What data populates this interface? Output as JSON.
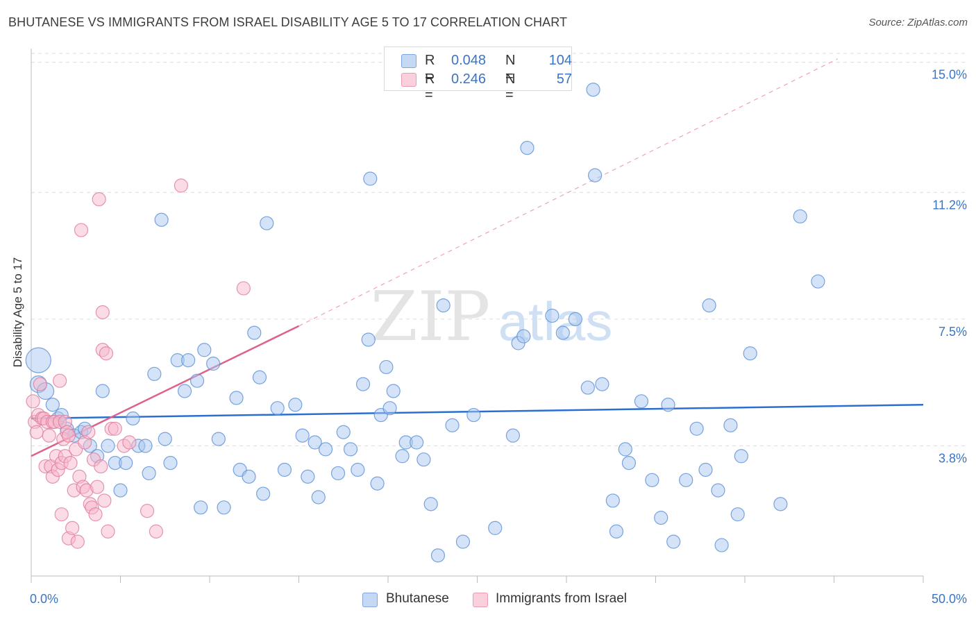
{
  "title": "BHUTANESE VS IMMIGRANTS FROM ISRAEL DISABILITY AGE 5 TO 17 CORRELATION CHART",
  "source": "Source: ZipAtlas.com",
  "watermark": {
    "zip": "ZIP",
    "atlas": "atlas"
  },
  "legend": {
    "rows": [
      {
        "r_label": "R =",
        "r_value": "0.048",
        "n_label": "N =",
        "n_value": "104",
        "color": "#a9c8f0"
      },
      {
        "r_label": "R =",
        "r_value": "0.246",
        "n_label": "N =",
        "n_value": "57",
        "color": "#f7b8cc"
      }
    ]
  },
  "bottom_legend": {
    "items": [
      {
        "label": "Bhutanese",
        "color": "#a9c8f0"
      },
      {
        "label": "Immigrants from Israel",
        "color": "#f7b8cc"
      }
    ]
  },
  "chart_data": {
    "type": "scatter",
    "title": "BHUTANESE VS IMMIGRANTS FROM ISRAEL DISABILITY AGE 5 TO 17 CORRELATION CHART",
    "xlabel": "",
    "ylabel": "Disability Age 5 to 17",
    "xlim": [
      0,
      50
    ],
    "ylim": [
      0,
      15.4
    ],
    "x_tick_labels": [
      {
        "value": 0,
        "label": "0.0%"
      },
      {
        "value": 50,
        "label": "50.0%"
      }
    ],
    "y_tick_labels": [
      {
        "value": 3.8,
        "label": "3.8%"
      },
      {
        "value": 7.5,
        "label": "7.5%"
      },
      {
        "value": 11.2,
        "label": "11.2%"
      },
      {
        "value": 15.0,
        "label": "15.0%"
      }
    ],
    "grid": true,
    "legend_position": "top-center",
    "colors": {
      "bhutanese_fill": "#a9c8f0",
      "bhutanese_stroke": "#5a8fd6",
      "bhutanese_line": "#2a6fcf",
      "israel_fill": "#f7b8cc",
      "israel_stroke": "#e07b9c",
      "israel_line": "#e0608c"
    },
    "series": [
      {
        "name": "Bhutanese",
        "points": [
          [
            0.4,
            6.3,
            3
          ],
          [
            0.4,
            5.6,
            2
          ],
          [
            0.8,
            5.4,
            2
          ],
          [
            1.2,
            5.0,
            1
          ],
          [
            1.5,
            4.6,
            1
          ],
          [
            1.7,
            4.7,
            1
          ],
          [
            2.0,
            4.3,
            1
          ],
          [
            2.4,
            4.1,
            1
          ],
          [
            2.8,
            4.2,
            1
          ],
          [
            3.0,
            4.3,
            1
          ],
          [
            3.3,
            3.8,
            1
          ],
          [
            3.7,
            3.5,
            1
          ],
          [
            4.0,
            5.4,
            1
          ],
          [
            4.3,
            3.8,
            1
          ],
          [
            4.7,
            3.3,
            1
          ],
          [
            5.0,
            2.5,
            1
          ],
          [
            5.3,
            3.3,
            1
          ],
          [
            5.7,
            4.6,
            1
          ],
          [
            6.0,
            3.8,
            1
          ],
          [
            6.4,
            3.8,
            1
          ],
          [
            6.6,
            3.0,
            1
          ],
          [
            6.9,
            5.9,
            1
          ],
          [
            7.5,
            4.0,
            1
          ],
          [
            7.3,
            10.4,
            1
          ],
          [
            7.8,
            3.3,
            1
          ],
          [
            8.2,
            6.3,
            1
          ],
          [
            8.6,
            5.4,
            1
          ],
          [
            8.8,
            6.3,
            1
          ],
          [
            9.3,
            5.7,
            1
          ],
          [
            9.5,
            2.0,
            1
          ],
          [
            9.7,
            6.6,
            1
          ],
          [
            10.2,
            6.2,
            1
          ],
          [
            10.5,
            4.0,
            1
          ],
          [
            10.8,
            2.0,
            1
          ],
          [
            11.5,
            5.2,
            1
          ],
          [
            11.7,
            3.1,
            1
          ],
          [
            12.2,
            2.9,
            1
          ],
          [
            12.5,
            7.1,
            1
          ],
          [
            12.8,
            5.8,
            1
          ],
          [
            13.0,
            2.4,
            1
          ],
          [
            13.2,
            10.3,
            1
          ],
          [
            13.8,
            4.9,
            1
          ],
          [
            14.2,
            3.1,
            1
          ],
          [
            14.8,
            5.0,
            1
          ],
          [
            15.2,
            4.1,
            1
          ],
          [
            15.5,
            2.9,
            1
          ],
          [
            15.9,
            3.9,
            1
          ],
          [
            16.1,
            2.3,
            1
          ],
          [
            16.5,
            3.7,
            1
          ],
          [
            17.2,
            3.0,
            1
          ],
          [
            17.5,
            4.2,
            1
          ],
          [
            17.9,
            3.7,
            1
          ],
          [
            18.3,
            3.1,
            1
          ],
          [
            18.6,
            5.6,
            1
          ],
          [
            18.9,
            6.9,
            1
          ],
          [
            19.0,
            11.6,
            1
          ],
          [
            19.4,
            2.7,
            1
          ],
          [
            19.6,
            4.7,
            1
          ],
          [
            19.9,
            6.1,
            1
          ],
          [
            20.1,
            4.9,
            1
          ],
          [
            20.3,
            5.4,
            1
          ],
          [
            20.8,
            3.5,
            1
          ],
          [
            21.0,
            3.9,
            1
          ],
          [
            21.6,
            3.9,
            1
          ],
          [
            22.0,
            3.4,
            1
          ],
          [
            22.4,
            2.1,
            1
          ],
          [
            22.8,
            0.6,
            1
          ],
          [
            23.1,
            7.9,
            1
          ],
          [
            23.6,
            4.4,
            1
          ],
          [
            24.2,
            1.0,
            1
          ],
          [
            24.8,
            4.7,
            1
          ],
          [
            26.0,
            1.4,
            1
          ],
          [
            27.0,
            4.1,
            1
          ],
          [
            27.3,
            6.8,
            1
          ],
          [
            27.6,
            7.0,
            1
          ],
          [
            27.8,
            12.5,
            1
          ],
          [
            29.2,
            7.6,
            1
          ],
          [
            29.8,
            7.1,
            1
          ],
          [
            30.5,
            7.5,
            1
          ],
          [
            31.2,
            5.5,
            1
          ],
          [
            31.6,
            11.7,
            1
          ],
          [
            31.5,
            14.2,
            1
          ],
          [
            32.0,
            5.6,
            1
          ],
          [
            32.6,
            2.2,
            1
          ],
          [
            32.8,
            1.3,
            1
          ],
          [
            33.3,
            3.7,
            1
          ],
          [
            33.5,
            3.3,
            1
          ],
          [
            34.2,
            5.1,
            1
          ],
          [
            34.8,
            2.8,
            1
          ],
          [
            35.3,
            1.7,
            1
          ],
          [
            35.7,
            5.0,
            1
          ],
          [
            36.0,
            1.0,
            1
          ],
          [
            36.7,
            2.8,
            1
          ],
          [
            37.3,
            4.3,
            1
          ],
          [
            37.8,
            3.1,
            1
          ],
          [
            38.0,
            7.9,
            1
          ],
          [
            38.5,
            2.5,
            1
          ],
          [
            38.7,
            0.9,
            1
          ],
          [
            39.2,
            4.4,
            1
          ],
          [
            39.6,
            1.8,
            1
          ],
          [
            39.8,
            3.5,
            1
          ],
          [
            40.3,
            6.5,
            1
          ],
          [
            42.0,
            2.1,
            1
          ],
          [
            43.1,
            10.5,
            1
          ],
          [
            44.1,
            8.6,
            1
          ]
        ],
        "trend": {
          "x": [
            0,
            50
          ],
          "y": [
            4.6,
            5.0
          ]
        }
      },
      {
        "name": "Immigrants from Israel",
        "points": [
          [
            0.1,
            5.1,
            1
          ],
          [
            0.2,
            4.5,
            1
          ],
          [
            0.3,
            4.2,
            1
          ],
          [
            0.4,
            4.7,
            1
          ],
          [
            0.5,
            5.6,
            1
          ],
          [
            0.6,
            4.6,
            1
          ],
          [
            0.7,
            4.6,
            1
          ],
          [
            0.8,
            3.2,
            1
          ],
          [
            0.9,
            4.5,
            1
          ],
          [
            1.0,
            4.1,
            1
          ],
          [
            1.1,
            3.2,
            1
          ],
          [
            1.2,
            2.9,
            1
          ],
          [
            1.2,
            4.5,
            1
          ],
          [
            1.3,
            4.5,
            1
          ],
          [
            1.4,
            3.5,
            1
          ],
          [
            1.5,
            3.1,
            1
          ],
          [
            1.6,
            4.5,
            1
          ],
          [
            1.6,
            5.7,
            1
          ],
          [
            1.7,
            3.3,
            1
          ],
          [
            1.7,
            1.8,
            1
          ],
          [
            1.8,
            4.0,
            1
          ],
          [
            1.9,
            3.5,
            1
          ],
          [
            1.9,
            4.5,
            1
          ],
          [
            2.0,
            4.2,
            1
          ],
          [
            2.1,
            1.1,
            1
          ],
          [
            2.1,
            4.1,
            1
          ],
          [
            2.2,
            3.3,
            1
          ],
          [
            2.3,
            1.4,
            1
          ],
          [
            2.4,
            2.5,
            1
          ],
          [
            2.5,
            3.7,
            1
          ],
          [
            2.6,
            1.0,
            1
          ],
          [
            2.7,
            2.9,
            1
          ],
          [
            2.8,
            10.1,
            1
          ],
          [
            2.9,
            2.6,
            1
          ],
          [
            3.0,
            3.9,
            1
          ],
          [
            3.1,
            2.5,
            1
          ],
          [
            3.2,
            4.2,
            1
          ],
          [
            3.3,
            2.1,
            1
          ],
          [
            3.4,
            2.0,
            1
          ],
          [
            3.5,
            3.4,
            1
          ],
          [
            3.6,
            1.8,
            1
          ],
          [
            3.7,
            2.6,
            1
          ],
          [
            3.8,
            11.0,
            1
          ],
          [
            3.9,
            3.2,
            1
          ],
          [
            4.0,
            7.7,
            1
          ],
          [
            4.1,
            2.2,
            1
          ],
          [
            4.3,
            1.3,
            1
          ],
          [
            4.5,
            4.3,
            1
          ],
          [
            4.0,
            6.6,
            1
          ],
          [
            4.2,
            6.5,
            1
          ],
          [
            4.7,
            4.3,
            1
          ],
          [
            5.2,
            3.8,
            1
          ],
          [
            5.5,
            3.9,
            1
          ],
          [
            6.5,
            1.9,
            1
          ],
          [
            7.0,
            1.3,
            1
          ],
          [
            8.4,
            11.4,
            1
          ],
          [
            11.9,
            8.4,
            1
          ]
        ],
        "trend": {
          "x": [
            0,
            15
          ],
          "y": [
            3.5,
            7.3
          ]
        },
        "trend_dashed": {
          "x": [
            15,
            45.2
          ],
          "y": [
            7.3,
            15.1
          ]
        }
      }
    ]
  }
}
